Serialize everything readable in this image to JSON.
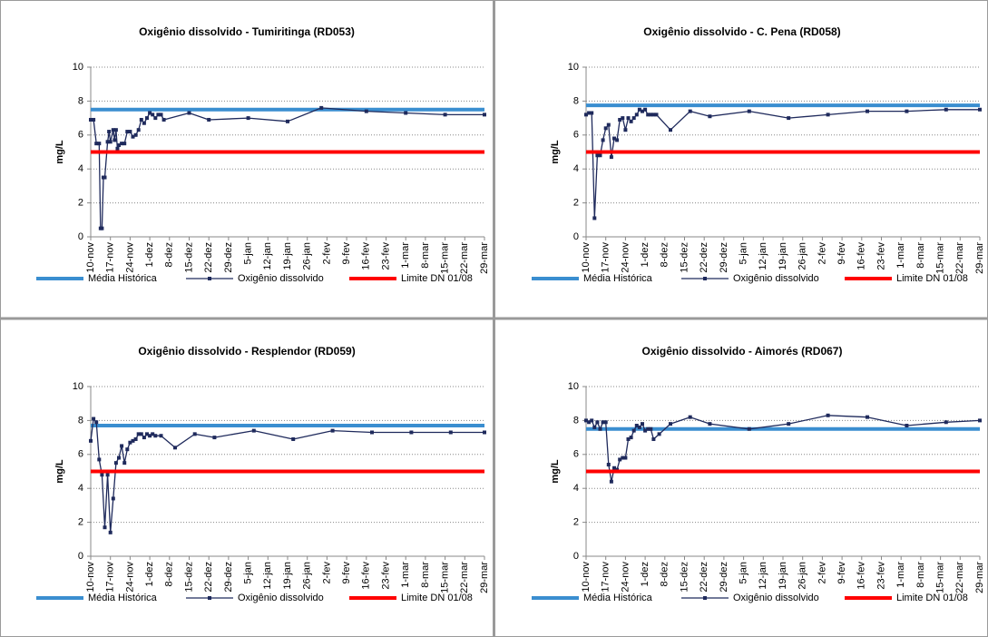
{
  "chart_data": [
    {
      "type": "line",
      "title": "Oxigênio dissolvido - Tumiritinga (RD053)",
      "y_label": "mg/L",
      "xlim": [
        0,
        140
      ],
      "xticks": [
        {
          "value": 0,
          "label": "10-nov"
        },
        {
          "value": 7,
          "label": "17-nov"
        },
        {
          "value": 14,
          "label": "24-nov"
        },
        {
          "value": 21,
          "label": "1-dez"
        },
        {
          "value": 28,
          "label": "8-dez"
        },
        {
          "value": 35,
          "label": "15-dez"
        },
        {
          "value": 42,
          "label": "22-dez"
        },
        {
          "value": 49,
          "label": "29-dez"
        },
        {
          "value": 56,
          "label": "5-jan"
        },
        {
          "value": 63,
          "label": "12-jan"
        },
        {
          "value": 70,
          "label": "19-jan"
        },
        {
          "value": 77,
          "label": "26-jan"
        },
        {
          "value": 84,
          "label": "2-fev"
        },
        {
          "value": 91,
          "label": "9-fev"
        },
        {
          "value": 98,
          "label": "16-fev"
        },
        {
          "value": 105,
          "label": "23-fev"
        },
        {
          "value": 112,
          "label": "1-mar"
        },
        {
          "value": 119,
          "label": "8-mar"
        },
        {
          "value": 126,
          "label": "15-mar"
        },
        {
          "value": 133,
          "label": "22-mar"
        },
        {
          "value": 140,
          "label": "29-mar"
        }
      ],
      "ylim": [
        0,
        10
      ],
      "yticks": [
        0,
        2,
        4,
        6,
        8,
        10
      ],
      "grid": true,
      "legend": "bottom",
      "series": [
        {
          "name": "Média Histórica",
          "color": "#3a8ed0",
          "x": [
            0,
            140
          ],
          "values": [
            7.5,
            7.5
          ]
        },
        {
          "name": "Oxigênio dissolvido",
          "color": "#1f2a5c",
          "marker": "square",
          "x": [
            0,
            1,
            2,
            3,
            3.5,
            4,
            4.5,
            5,
            6,
            6.5,
            7,
            8,
            8.5,
            9,
            9.5,
            10,
            11,
            12,
            13,
            14,
            15,
            16,
            17,
            18,
            19,
            20,
            21,
            22,
            23,
            24,
            25,
            26,
            35,
            42,
            56,
            70,
            82,
            98,
            112,
            126,
            140
          ],
          "values": [
            6.9,
            6.9,
            5.5,
            5.5,
            0.5,
            0.5,
            3.5,
            3.5,
            5.6,
            6.2,
            5.6,
            6.3,
            5.7,
            6.3,
            5.2,
            5.4,
            5.5,
            5.5,
            6.2,
            6.2,
            5.9,
            6.0,
            6.3,
            6.9,
            6.7,
            7.0,
            7.3,
            7.2,
            7.0,
            7.2,
            7.2,
            6.9,
            7.3,
            6.9,
            7.0,
            6.8,
            7.6,
            7.4,
            7.3,
            7.2,
            7.2
          ]
        },
        {
          "name": "Limite DN 01/08",
          "color": "#ff0000",
          "x": [
            0,
            140
          ],
          "values": [
            5,
            5
          ]
        }
      ]
    },
    {
      "type": "line",
      "title": "Oxigênio dissolvido - C. Pena (RD058)",
      "y_label": "mg/L",
      "xlim": [
        0,
        140
      ],
      "xticks": [
        {
          "value": 0,
          "label": "10-nov"
        },
        {
          "value": 7,
          "label": "17-nov"
        },
        {
          "value": 14,
          "label": "24-nov"
        },
        {
          "value": 21,
          "label": "1-dez"
        },
        {
          "value": 28,
          "label": "8-dez"
        },
        {
          "value": 35,
          "label": "15-dez"
        },
        {
          "value": 42,
          "label": "22-dez"
        },
        {
          "value": 49,
          "label": "29-dez"
        },
        {
          "value": 56,
          "label": "5-jan"
        },
        {
          "value": 63,
          "label": "12-jan"
        },
        {
          "value": 70,
          "label": "19-jan"
        },
        {
          "value": 77,
          "label": "26-jan"
        },
        {
          "value": 84,
          "label": "2-fev"
        },
        {
          "value": 91,
          "label": "9-fev"
        },
        {
          "value": 98,
          "label": "16-fev"
        },
        {
          "value": 105,
          "label": "23-fev"
        },
        {
          "value": 112,
          "label": "1-mar"
        },
        {
          "value": 119,
          "label": "8-mar"
        },
        {
          "value": 126,
          "label": "15-mar"
        },
        {
          "value": 133,
          "label": "22-mar"
        },
        {
          "value": 140,
          "label": "29-mar"
        }
      ],
      "ylim": [
        0,
        10
      ],
      "yticks": [
        0,
        2,
        4,
        6,
        8,
        10
      ],
      "grid": true,
      "legend": "bottom",
      "series": [
        {
          "name": "Média Histórica",
          "color": "#3a8ed0",
          "x": [
            0,
            140
          ],
          "values": [
            7.75,
            7.75
          ]
        },
        {
          "name": "Oxigênio dissolvido",
          "color": "#1f2a5c",
          "marker": "square",
          "x": [
            0,
            1,
            2,
            3,
            4,
            5,
            6,
            7,
            8,
            9,
            10,
            11,
            12,
            13,
            14,
            15,
            16,
            17,
            18,
            19,
            20,
            21,
            22,
            23,
            24,
            25,
            30,
            37,
            44,
            58,
            72,
            86,
            100,
            114,
            128,
            140
          ],
          "values": [
            7.2,
            7.3,
            7.3,
            1.1,
            4.8,
            4.8,
            5.7,
            6.4,
            6.6,
            4.7,
            5.8,
            5.7,
            6.9,
            7.0,
            6.3,
            7.0,
            6.8,
            7.0,
            7.2,
            7.5,
            7.4,
            7.5,
            7.2,
            7.2,
            7.2,
            7.2,
            6.3,
            7.4,
            7.1,
            7.4,
            7.0,
            7.2,
            7.4,
            7.4,
            7.5,
            7.5
          ]
        },
        {
          "name": "Limite DN 01/08",
          "color": "#ff0000",
          "x": [
            0,
            140
          ],
          "values": [
            5,
            5
          ]
        }
      ]
    },
    {
      "type": "line",
      "title": "Oxigênio dissolvido - Resplendor (RD059)",
      "y_label": "mg/L",
      "xlim": [
        0,
        140
      ],
      "xticks": [
        {
          "value": 0,
          "label": "10-nov"
        },
        {
          "value": 7,
          "label": "17-nov"
        },
        {
          "value": 14,
          "label": "24-nov"
        },
        {
          "value": 21,
          "label": "1-dez"
        },
        {
          "value": 28,
          "label": "8-dez"
        },
        {
          "value": 35,
          "label": "15-dez"
        },
        {
          "value": 42,
          "label": "22-dez"
        },
        {
          "value": 49,
          "label": "29-dez"
        },
        {
          "value": 56,
          "label": "5-jan"
        },
        {
          "value": 63,
          "label": "12-jan"
        },
        {
          "value": 70,
          "label": "19-jan"
        },
        {
          "value": 77,
          "label": "26-jan"
        },
        {
          "value": 84,
          "label": "2-fev"
        },
        {
          "value": 91,
          "label": "9-fev"
        },
        {
          "value": 98,
          "label": "16-fev"
        },
        {
          "value": 105,
          "label": "23-fev"
        },
        {
          "value": 112,
          "label": "1-mar"
        },
        {
          "value": 119,
          "label": "8-mar"
        },
        {
          "value": 126,
          "label": "15-mar"
        },
        {
          "value": 133,
          "label": "22-mar"
        },
        {
          "value": 140,
          "label": "29-mar"
        }
      ],
      "ylim": [
        0,
        10
      ],
      "yticks": [
        0,
        2,
        4,
        6,
        8,
        10
      ],
      "grid": true,
      "legend": "bottom",
      "series": [
        {
          "name": "Média Histórica",
          "color": "#3a8ed0",
          "x": [
            0,
            140
          ],
          "values": [
            7.7,
            7.7
          ]
        },
        {
          "name": "Oxigênio dissolvido",
          "color": "#1f2a5c",
          "marker": "square",
          "x": [
            0,
            1,
            2,
            3,
            4,
            5,
            6,
            7,
            8,
            9,
            10,
            11,
            12,
            13,
            14,
            15,
            16,
            17,
            18,
            19,
            20,
            21,
            22,
            23,
            25,
            30,
            37,
            44,
            58,
            72,
            86,
            100,
            114,
            128,
            140
          ],
          "values": [
            6.8,
            8.1,
            7.9,
            5.7,
            4.8,
            1.7,
            4.8,
            1.4,
            3.4,
            5.5,
            5.8,
            6.5,
            5.5,
            6.3,
            6.7,
            6.8,
            6.9,
            7.2,
            7.2,
            7.0,
            7.2,
            7.1,
            7.2,
            7.1,
            7.1,
            6.4,
            7.2,
            7.0,
            7.4,
            6.9,
            7.4,
            7.3,
            7.3,
            7.3,
            7.3
          ]
        },
        {
          "name": "Limite DN 01/08",
          "color": "#ff0000",
          "x": [
            0,
            140
          ],
          "values": [
            5,
            5
          ]
        }
      ]
    },
    {
      "type": "line",
      "title": "Oxigênio dissolvido - Aimorés (RD067)",
      "y_label": "mg/L",
      "xlim": [
        0,
        140
      ],
      "xticks": [
        {
          "value": 0,
          "label": "10-nov"
        },
        {
          "value": 7,
          "label": "17-nov"
        },
        {
          "value": 14,
          "label": "24-nov"
        },
        {
          "value": 21,
          "label": "1-dez"
        },
        {
          "value": 28,
          "label": "8-dez"
        },
        {
          "value": 35,
          "label": "15-dez"
        },
        {
          "value": 42,
          "label": "22-dez"
        },
        {
          "value": 49,
          "label": "29-dez"
        },
        {
          "value": 56,
          "label": "5-jan"
        },
        {
          "value": 63,
          "label": "12-jan"
        },
        {
          "value": 70,
          "label": "19-jan"
        },
        {
          "value": 77,
          "label": "26-jan"
        },
        {
          "value": 84,
          "label": "2-fev"
        },
        {
          "value": 91,
          "label": "9-fev"
        },
        {
          "value": 98,
          "label": "16-fev"
        },
        {
          "value": 105,
          "label": "23-fev"
        },
        {
          "value": 112,
          "label": "1-mar"
        },
        {
          "value": 119,
          "label": "8-mar"
        },
        {
          "value": 126,
          "label": "15-mar"
        },
        {
          "value": 133,
          "label": "22-mar"
        },
        {
          "value": 140,
          "label": "29-mar"
        }
      ],
      "ylim": [
        0,
        10
      ],
      "yticks": [
        0,
        2,
        4,
        6,
        8,
        10
      ],
      "grid": true,
      "legend": "bottom",
      "series": [
        {
          "name": "Média Histórica",
          "color": "#3a8ed0",
          "x": [
            0,
            140
          ],
          "values": [
            7.5,
            7.5
          ]
        },
        {
          "name": "Oxigênio dissolvido",
          "color": "#1f2a5c",
          "marker": "square",
          "x": [
            0,
            1,
            2,
            3,
            4,
            5,
            6,
            7,
            8,
            9,
            10,
            11,
            12,
            13,
            14,
            15,
            16,
            17,
            18,
            19,
            20,
            21,
            22,
            23,
            24,
            26,
            30,
            37,
            44,
            58,
            72,
            86,
            100,
            114,
            128,
            140
          ],
          "values": [
            8.0,
            7.9,
            8.0,
            7.6,
            7.9,
            7.5,
            7.9,
            7.9,
            5.4,
            4.4,
            5.2,
            5.1,
            5.7,
            5.8,
            5.8,
            6.9,
            7.0,
            7.4,
            7.7,
            7.6,
            7.8,
            7.4,
            7.5,
            7.5,
            6.9,
            7.2,
            7.8,
            8.2,
            7.8,
            7.5,
            7.8,
            8.3,
            8.2,
            7.7,
            7.9,
            8.0
          ]
        },
        {
          "name": "Limite DN 01/08",
          "color": "#ff0000",
          "x": [
            0,
            140
          ],
          "values": [
            5,
            5
          ]
        }
      ]
    }
  ]
}
